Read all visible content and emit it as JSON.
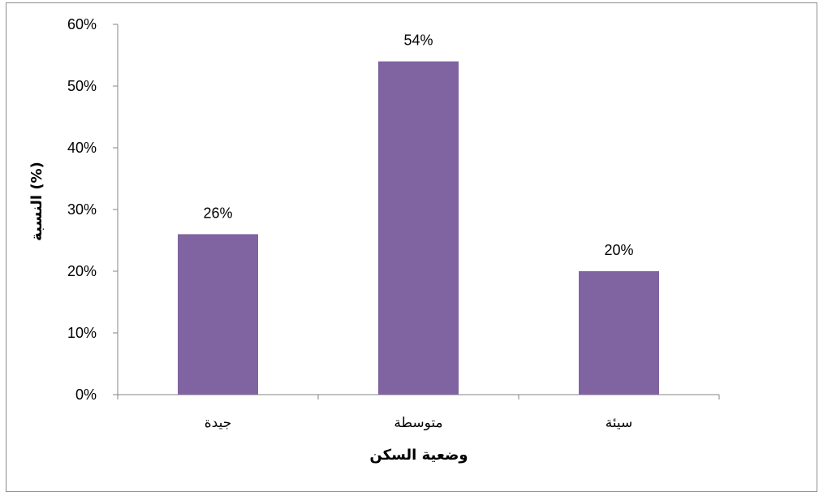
{
  "chart_data": {
    "type": "bar",
    "categories": [
      "جيدة",
      "متوسطة",
      "سيئة"
    ],
    "values": [
      26,
      54,
      20
    ],
    "data_labels": [
      "26%",
      "54%",
      "20%"
    ],
    "xlabel": "وضعية السكن",
    "ylabel": "النسبة (%)",
    "ylim": [
      0,
      60
    ],
    "yticks": [
      "0%",
      "10%",
      "20%",
      "30%",
      "40%",
      "50%",
      "60%"
    ],
    "grid": false,
    "legend": "none",
    "bar_color": "#8064a2",
    "axis_color": "#868686"
  }
}
